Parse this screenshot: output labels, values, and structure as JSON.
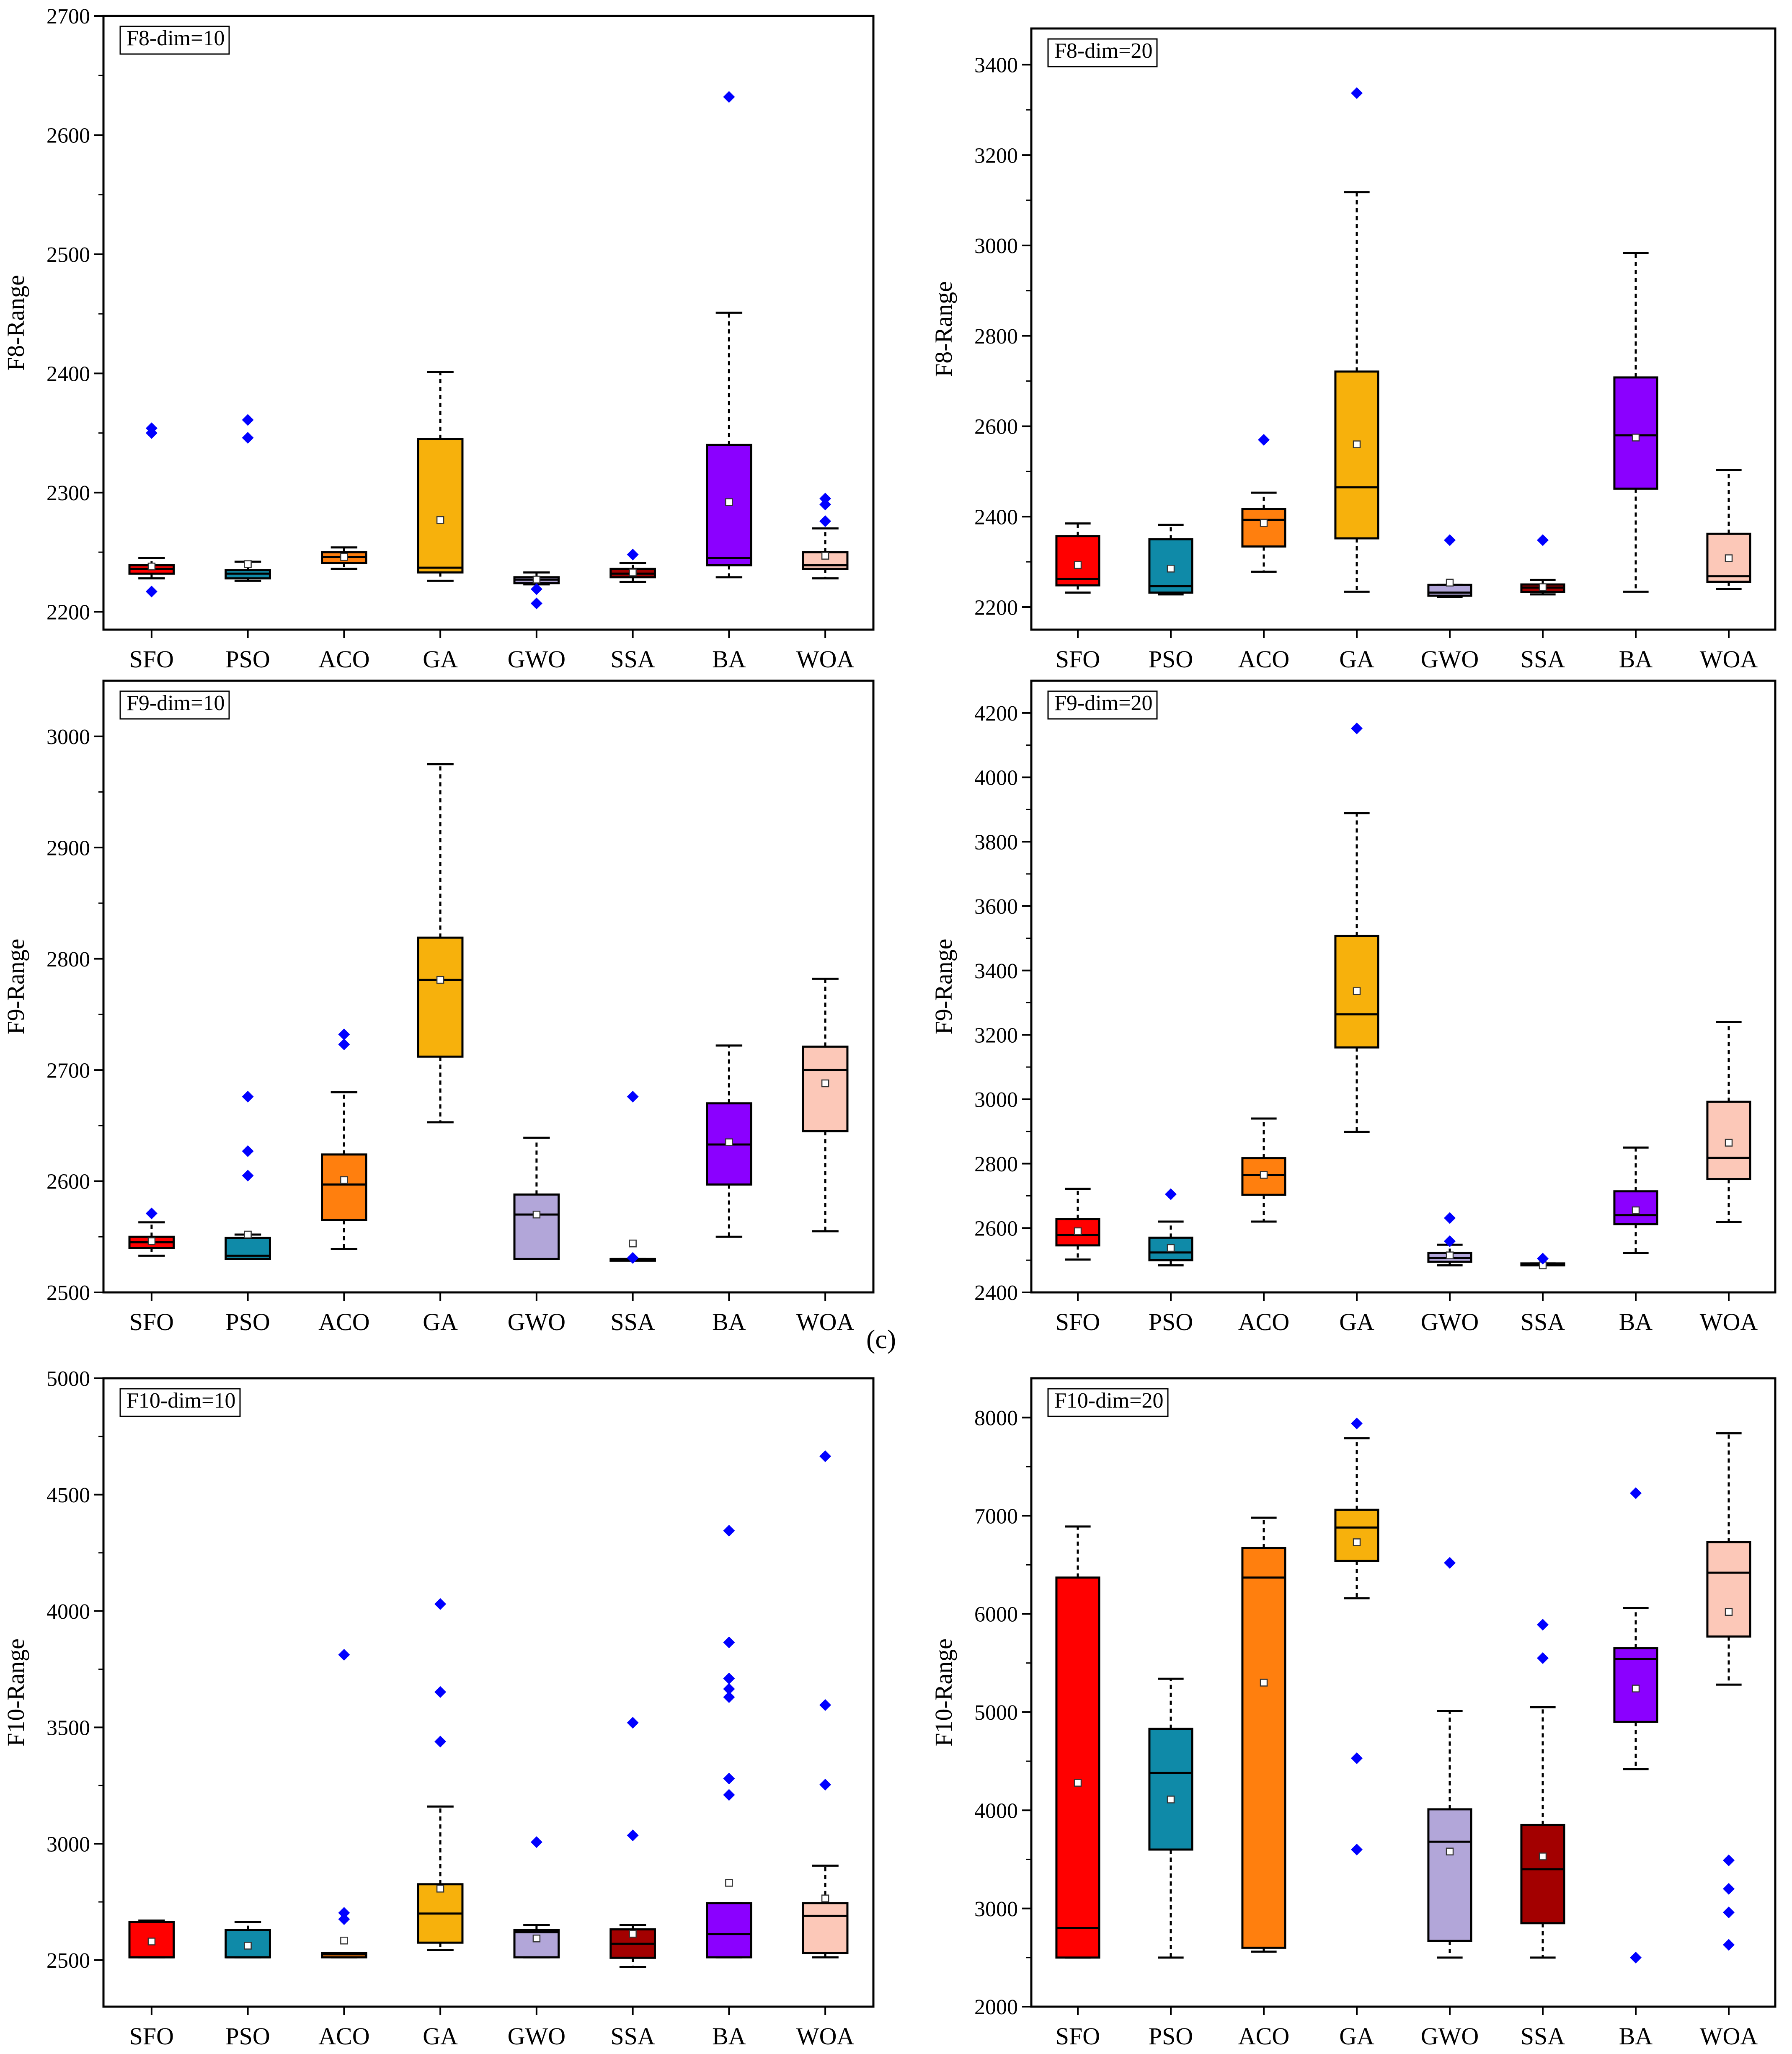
{
  "figure_label": "(c)",
  "colors": {
    "SFO": "#ff0000",
    "PSO": "#0f8aa8",
    "ACO": "#ff7f0e",
    "GA": "#f7b10c",
    "GWO": "#b2a6d9",
    "SSA": "#a30000",
    "BA": "#8b00ff",
    "WOA": "#fcc8b8",
    "outlier": "#0000ff",
    "mean": "#ffffff"
  },
  "chart_data": [
    {
      "type": "boxplot",
      "title": "F8-dim=10",
      "ylabel": "F8-Range",
      "categories": [
        "SFO",
        "PSO",
        "ACO",
        "GA",
        "GWO",
        "SSA",
        "BA",
        "WOA"
      ],
      "ylim": [
        2185,
        2700
      ],
      "yticks": [
        2200,
        2300,
        2400,
        2500,
        2600,
        2700
      ],
      "boxes": [
        {
          "min": 2228,
          "q1": 2232,
          "median": 2236,
          "q3": 2239,
          "max": 2245,
          "mean": 2238,
          "outliers": [
            2217,
            2350,
            2354
          ]
        },
        {
          "min": 2226,
          "q1": 2228,
          "median": 2232,
          "q3": 2235,
          "max": 2242,
          "mean": 2240,
          "outliers": [
            2346,
            2361
          ]
        },
        {
          "min": 2236,
          "q1": 2241,
          "median": 2246,
          "q3": 2250,
          "max": 2254,
          "mean": 2246,
          "outliers": []
        },
        {
          "min": 2226,
          "q1": 2233,
          "median": 2237,
          "q3": 2345,
          "max": 2401,
          "mean": 2277,
          "outliers": []
        },
        {
          "min": 2223,
          "q1": 2224,
          "median": 2227,
          "q3": 2229,
          "max": 2233,
          "mean": 2227,
          "outliers": [
            2207,
            2219
          ]
        },
        {
          "min": 2225,
          "q1": 2229,
          "median": 2232,
          "q3": 2236,
          "max": 2241,
          "mean": 2233,
          "outliers": [
            2248
          ]
        },
        {
          "min": 2229,
          "q1": 2239,
          "median": 2245,
          "q3": 2340,
          "max": 2451,
          "mean": 2292,
          "outliers": [
            2632
          ]
        },
        {
          "min": 2228,
          "q1": 2236,
          "median": 2239,
          "q3": 2250,
          "max": 2270,
          "mean": 2247,
          "outliers": [
            2276,
            2290,
            2295
          ]
        }
      ]
    },
    {
      "type": "boxplot",
      "title": "F8-dim=20",
      "ylabel": "F8-Range",
      "categories": [
        "SFO",
        "PSO",
        "ACO",
        "GA",
        "GWO",
        "SSA",
        "BA",
        "WOA"
      ],
      "ylim": [
        2150,
        3480
      ],
      "yticks": [
        2200,
        2400,
        2600,
        2800,
        3000,
        3200,
        3400
      ],
      "boxes": [
        {
          "min": 2232,
          "q1": 2248,
          "median": 2262,
          "q3": 2357,
          "max": 2385,
          "mean": 2293,
          "outliers": []
        },
        {
          "min": 2228,
          "q1": 2232,
          "median": 2246,
          "q3": 2350,
          "max": 2382,
          "mean": 2285,
          "outliers": []
        },
        {
          "min": 2278,
          "q1": 2334,
          "median": 2393,
          "q3": 2417,
          "max": 2453,
          "mean": 2386,
          "outliers": [
            2570
          ]
        },
        {
          "min": 2234,
          "q1": 2352,
          "median": 2465,
          "q3": 2721,
          "max": 3118,
          "mean": 2560,
          "outliers": [
            3337
          ]
        },
        {
          "min": 2222,
          "q1": 2225,
          "median": 2232,
          "q3": 2249,
          "max": 2249,
          "mean": 2254,
          "outliers": [
            2348
          ]
        },
        {
          "min": 2228,
          "q1": 2233,
          "median": 2243,
          "q3": 2250,
          "max": 2260,
          "mean": 2244,
          "outliers": [
            2348
          ]
        },
        {
          "min": 2234,
          "q1": 2462,
          "median": 2580,
          "q3": 2708,
          "max": 2983,
          "mean": 2575,
          "outliers": []
        },
        {
          "min": 2240,
          "q1": 2256,
          "median": 2268,
          "q3": 2362,
          "max": 2503,
          "mean": 2308,
          "outliers": []
        }
      ]
    },
    {
      "type": "boxplot",
      "title": "F9-dim=10",
      "ylabel": "F9-Range",
      "categories": [
        "SFO",
        "PSO",
        "ACO",
        "GA",
        "GWO",
        "SSA",
        "BA",
        "WOA"
      ],
      "ylim": [
        2500,
        3050
      ],
      "yticks": [
        2500,
        2600,
        2700,
        2800,
        2900,
        3000
      ],
      "boxes": [
        {
          "min": 2533,
          "q1": 2540,
          "median": 2545,
          "q3": 2550,
          "max": 2563,
          "mean": 2546,
          "outliers": [
            2571
          ]
        },
        {
          "min": 2530,
          "q1": 2530,
          "median": 2533,
          "q3": 2549,
          "max": 2552,
          "mean": 2552,
          "outliers": [
            2605,
            2627,
            2676
          ]
        },
        {
          "min": 2539,
          "q1": 2565,
          "median": 2597,
          "q3": 2624,
          "max": 2680,
          "mean": 2601,
          "outliers": [
            2723,
            2732
          ]
        },
        {
          "min": 2653,
          "q1": 2712,
          "median": 2781,
          "q3": 2819,
          "max": 2975,
          "mean": 2781,
          "outliers": []
        },
        {
          "min": 2530,
          "q1": 2530,
          "median": 2570,
          "q3": 2588,
          "max": 2639,
          "mean": 2570,
          "outliers": []
        },
        {
          "min": 2530,
          "q1": 2530,
          "median": 2530,
          "q3": 2530,
          "max": 2530,
          "mean": 2544,
          "outliers": [
            2531,
            2676
          ]
        },
        {
          "min": 2550,
          "q1": 2597,
          "median": 2633,
          "q3": 2670,
          "max": 2722,
          "mean": 2635,
          "outliers": []
        },
        {
          "min": 2555,
          "q1": 2645,
          "median": 2700,
          "q3": 2721,
          "max": 2782,
          "mean": 2688,
          "outliers": []
        }
      ]
    },
    {
      "type": "boxplot",
      "title": "F9-dim=20",
      "ylabel": "F9-Range",
      "categories": [
        "SFO",
        "PSO",
        "ACO",
        "GA",
        "GWO",
        "SSA",
        "BA",
        "WOA"
      ],
      "ylim": [
        2400,
        4300
      ],
      "yticks": [
        2400,
        2600,
        2800,
        3000,
        3200,
        3400,
        3600,
        3800,
        4000,
        4200
      ],
      "boxes": [
        {
          "min": 2502,
          "q1": 2546,
          "median": 2578,
          "q3": 2628,
          "max": 2722,
          "mean": 2590,
          "outliers": []
        },
        {
          "min": 2484,
          "q1": 2500,
          "median": 2524,
          "q3": 2570,
          "max": 2620,
          "mean": 2538,
          "outliers": [
            2705
          ]
        },
        {
          "min": 2620,
          "q1": 2703,
          "median": 2765,
          "q3": 2817,
          "max": 2940,
          "mean": 2765,
          "outliers": []
        },
        {
          "min": 2899,
          "q1": 3161,
          "median": 3264,
          "q3": 3507,
          "max": 3889,
          "mean": 3336,
          "outliers": [
            4152
          ]
        },
        {
          "min": 2484,
          "q1": 2495,
          "median": 2507,
          "q3": 2523,
          "max": 2548,
          "mean": 2515,
          "outliers": [
            2559,
            2631
          ]
        },
        {
          "min": 2484,
          "q1": 2484,
          "median": 2484,
          "q3": 2490,
          "max": 2490,
          "mean": 2484,
          "outliers": [
            2505
          ]
        },
        {
          "min": 2522,
          "q1": 2612,
          "median": 2640,
          "q3": 2714,
          "max": 2850,
          "mean": 2655,
          "outliers": []
        },
        {
          "min": 2618,
          "q1": 2752,
          "median": 2818,
          "q3": 2992,
          "max": 3240,
          "mean": 2865,
          "outliers": []
        }
      ]
    },
    {
      "type": "boxplot",
      "title": "F10-dim=10",
      "ylabel": "F10-Range",
      "categories": [
        "SFO",
        "PSO",
        "ACO",
        "GA",
        "GWO",
        "SSA",
        "BA",
        "WOA"
      ],
      "ylim": [
        2300,
        5000
      ],
      "yticks": [
        2500,
        3000,
        3500,
        4000,
        4500,
        5000
      ],
      "boxes": [
        {
          "min": 2512,
          "q1": 2512,
          "median": 2512,
          "q3": 2663,
          "max": 2670,
          "mean": 2580,
          "outliers": []
        },
        {
          "min": 2512,
          "q1": 2512,
          "median": 2512,
          "q3": 2630,
          "max": 2663,
          "mean": 2562,
          "outliers": []
        },
        {
          "min": 2512,
          "q1": 2512,
          "median": 2525,
          "q3": 2530,
          "max": 2530,
          "mean": 2584,
          "outliers": [
            2676,
            2703,
            3812
          ]
        },
        {
          "min": 2544,
          "q1": 2575,
          "median": 2700,
          "q3": 2826,
          "max": 3160,
          "mean": 2807,
          "outliers": [
            3439,
            3652,
            4030
          ]
        },
        {
          "min": 2512,
          "q1": 2512,
          "median": 2620,
          "q3": 2630,
          "max": 2650,
          "mean": 2593,
          "outliers": [
            3007
          ]
        },
        {
          "min": 2470,
          "q1": 2510,
          "median": 2570,
          "q3": 2632,
          "max": 2650,
          "mean": 2613,
          "outliers": [
            3036,
            3520
          ]
        },
        {
          "min": 2512,
          "q1": 2512,
          "median": 2612,
          "q3": 2745,
          "max": 2745,
          "mean": 2832,
          "outliers": [
            3210,
            3280,
            3630,
            3665,
            3710,
            3865,
            4345
          ]
        },
        {
          "min": 2512,
          "q1": 2530,
          "median": 2690,
          "q3": 2745,
          "max": 2906,
          "mean": 2765,
          "outliers": [
            3254,
            3596,
            4665
          ]
        }
      ]
    },
    {
      "type": "boxplot",
      "title": "F10-dim=20",
      "ylabel": "F10-Range",
      "categories": [
        "SFO",
        "PSO",
        "ACO",
        "GA",
        "GWO",
        "SSA",
        "BA",
        "WOA"
      ],
      "ylim": [
        2000,
        8400
      ],
      "yticks": [
        2000,
        3000,
        4000,
        5000,
        6000,
        7000,
        8000
      ],
      "boxes": [
        {
          "min": 2500,
          "q1": 2500,
          "median": 2800,
          "q3": 6370,
          "max": 6890,
          "mean": 4280,
          "outliers": []
        },
        {
          "min": 2500,
          "q1": 3600,
          "median": 4380,
          "q3": 4830,
          "max": 5340,
          "mean": 4110,
          "outliers": []
        },
        {
          "min": 2560,
          "q1": 2600,
          "median": 6370,
          "q3": 6670,
          "max": 6980,
          "mean": 5300,
          "outliers": []
        },
        {
          "min": 6160,
          "q1": 6540,
          "median": 6880,
          "q3": 7060,
          "max": 7790,
          "mean": 6730,
          "outliers": [
            3600,
            4530,
            7940
          ]
        },
        {
          "min": 2500,
          "q1": 2670,
          "median": 3680,
          "q3": 4010,
          "max": 5010,
          "mean": 3580,
          "outliers": [
            6520
          ]
        },
        {
          "min": 2500,
          "q1": 2850,
          "median": 3400,
          "q3": 3850,
          "max": 5050,
          "mean": 3530,
          "outliers": [
            5550,
            5890
          ]
        },
        {
          "min": 4420,
          "q1": 4900,
          "median": 5540,
          "q3": 5650,
          "max": 6060,
          "mean": 5240,
          "outliers": [
            2500,
            7230
          ]
        },
        {
          "min": 5280,
          "q1": 5770,
          "median": 6420,
          "q3": 6730,
          "max": 7840,
          "mean": 6020,
          "outliers": [
            2630,
            2960,
            3200,
            3490
          ]
        }
      ]
    }
  ]
}
